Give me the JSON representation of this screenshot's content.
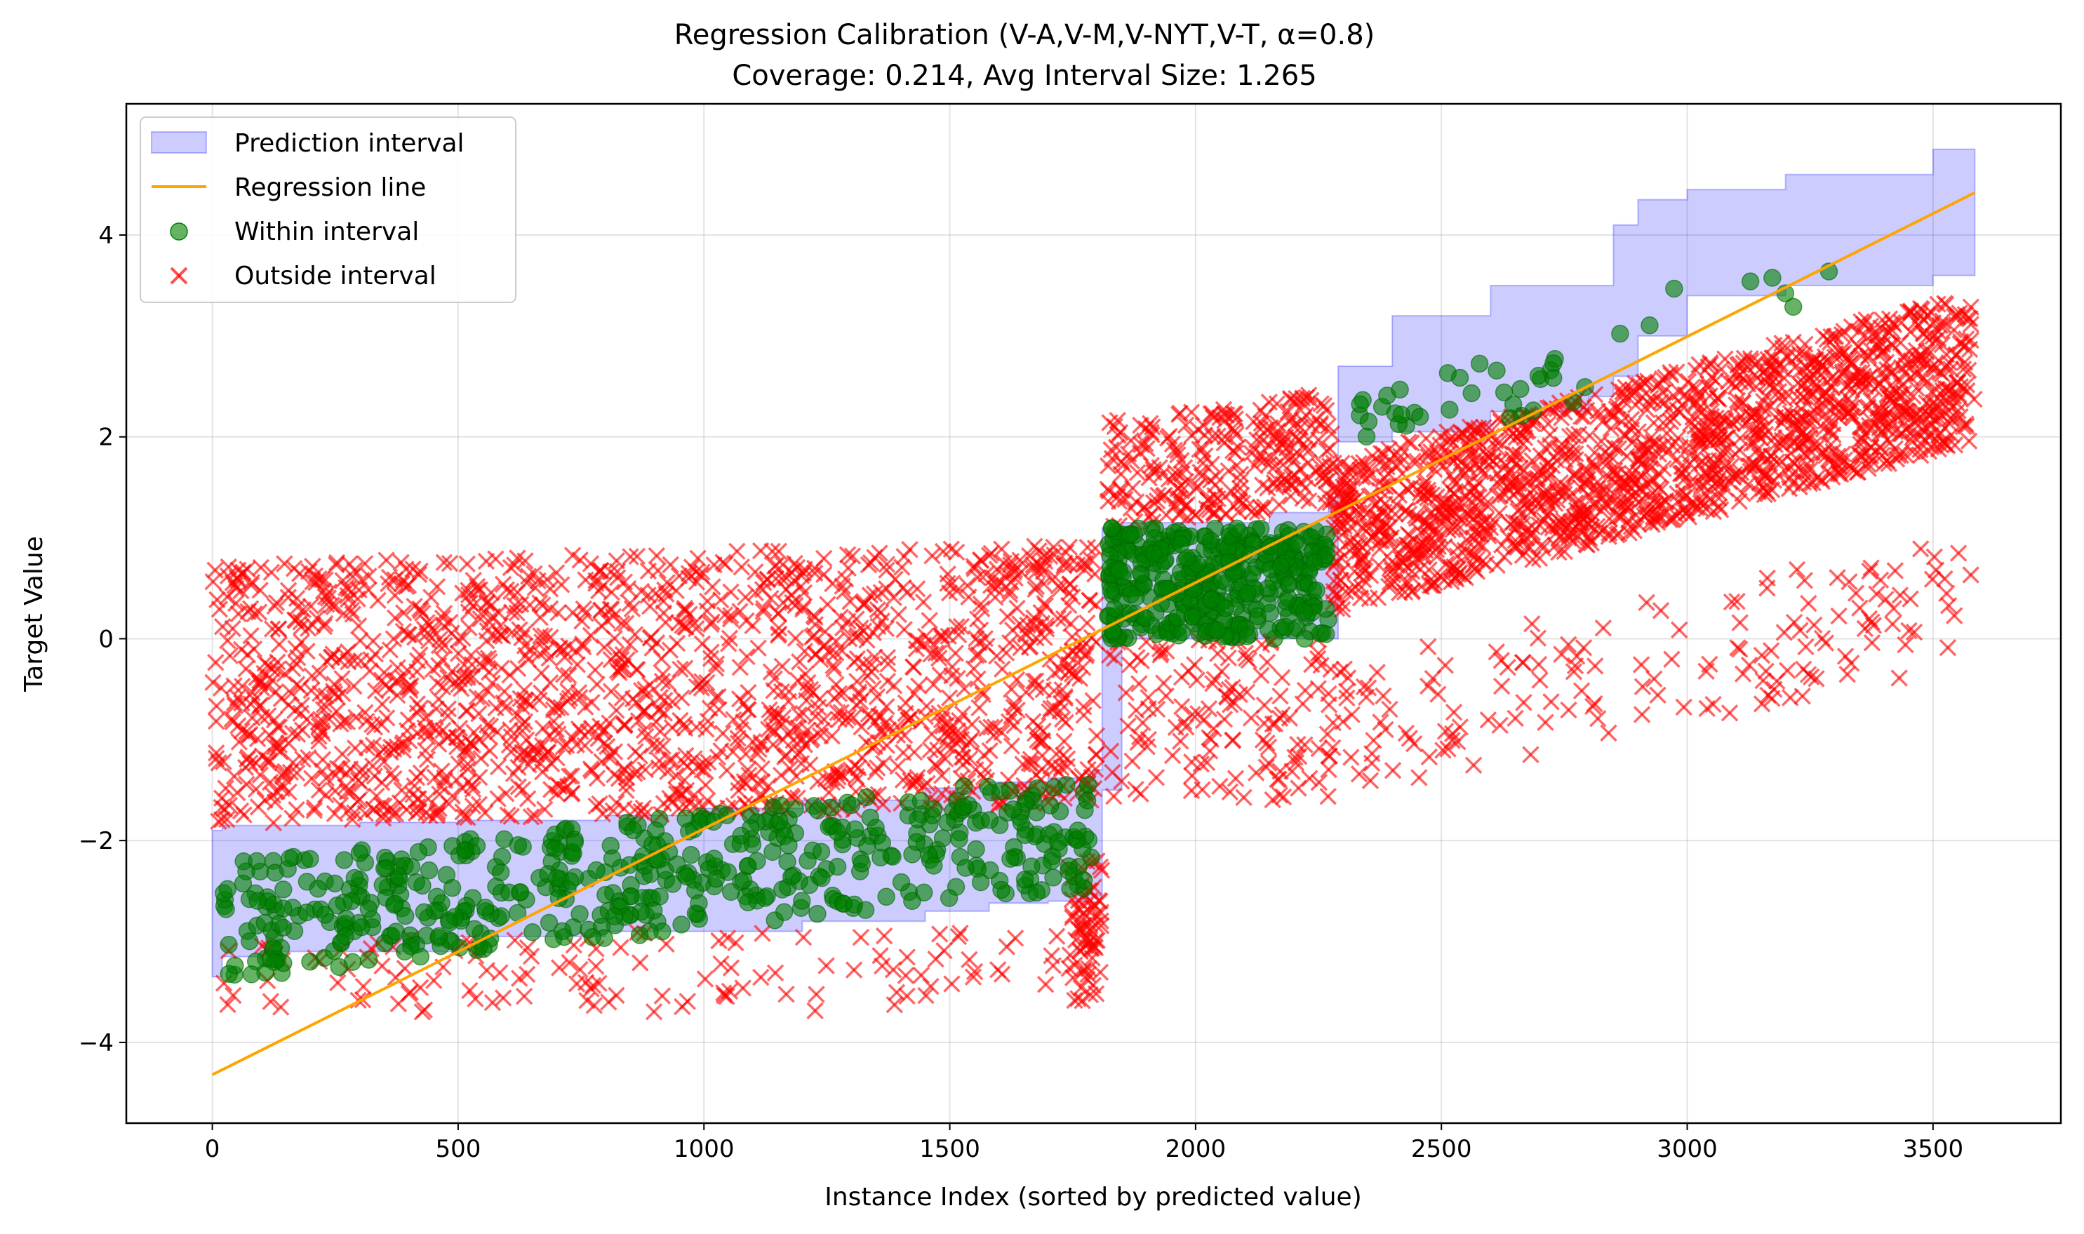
{
  "chart_data": {
    "type": "scatter",
    "title": "Regression Calibration (V-A,V-M,V-NYT,V-T, α=0.8)",
    "subtitle": "Coverage: 0.214, Avg Interval Size: 1.265",
    "xlabel": "Instance Index (sorted by predicted value)",
    "ylabel": "Target Value",
    "xlim": [
      -175,
      3760
    ],
    "ylim": [
      -4.8,
      5.3
    ],
    "xticks": [
      0,
      500,
      1000,
      1500,
      2000,
      2500,
      3000,
      3500
    ],
    "yticks": [
      -4,
      -2,
      0,
      2,
      4
    ],
    "xtick_labels": [
      "0",
      "500",
      "1000",
      "1500",
      "2000",
      "2500",
      "3000",
      "3500"
    ],
    "ytick_labels": [
      "−4",
      "−2",
      "0",
      "2",
      "4"
    ],
    "grid": true,
    "legend_position": "top-left",
    "colors": {
      "interval_fill": "#0000ff",
      "regression": "#ffa500",
      "within": "#008000",
      "outside": "#ff0000"
    },
    "series": [
      {
        "name": "Prediction interval",
        "kind": "band",
        "x": [
          0,
          20,
          100,
          300,
          500,
          800,
          1000,
          1200,
          1450,
          1580,
          1700,
          1790,
          1810,
          1850,
          2000,
          2150,
          2270,
          2290,
          2400,
          2600,
          2800,
          2850,
          2900,
          3000,
          3200,
          3500,
          3585
        ],
        "lower": [
          -3.35,
          -3.15,
          -3.1,
          -3.1,
          -2.95,
          -2.9,
          -2.9,
          -2.8,
          -2.7,
          -2.62,
          -2.6,
          -2.55,
          -1.5,
          0.0,
          0.0,
          0.0,
          0.0,
          1.95,
          2.05,
          2.25,
          2.4,
          2.6,
          3.0,
          3.4,
          3.5,
          3.6,
          3.6
        ],
        "upper": [
          -1.9,
          -1.85,
          -1.85,
          -1.82,
          -1.8,
          -1.75,
          -1.68,
          -1.6,
          -1.48,
          -1.42,
          -1.38,
          -1.3,
          1.1,
          1.15,
          1.15,
          1.25,
          1.4,
          2.7,
          3.2,
          3.5,
          3.5,
          4.1,
          4.35,
          4.45,
          4.6,
          4.85,
          4.85
        ]
      },
      {
        "name": "Regression line",
        "kind": "line",
        "x": [
          0,
          3585
        ],
        "y": [
          -4.32,
          4.42
        ]
      },
      {
        "name": "Within interval",
        "kind": "scatter",
        "marker": "circle",
        "segments": [
          {
            "x_start": 20,
            "x_end": 1790,
            "base_start": -2.8,
            "base_end": -1.9,
            "spread": 1.15,
            "count": 520
          },
          {
            "x_start": 1820,
            "x_end": 2270,
            "base_start": 0.55,
            "base_end": 0.55,
            "spread": 1.1,
            "count": 380
          },
          {
            "x_start": 2280,
            "x_end": 2800,
            "base_start": 2.2,
            "base_end": 2.6,
            "spread": 0.6,
            "count": 34
          },
          {
            "x_start": 2850,
            "x_end": 3320,
            "base_start": 3.2,
            "base_end": 3.55,
            "spread": 0.4,
            "count": 8
          }
        ]
      },
      {
        "name": "Outside interval",
        "kind": "scatter",
        "marker": "x",
        "segments": [
          {
            "x_start": 0,
            "x_end": 1800,
            "base_start": -0.55,
            "base_end": -0.35,
            "spread": 2.6,
            "count": 1550
          },
          {
            "x_start": 0,
            "x_end": 1800,
            "base_start": -3.3,
            "base_end": -3.3,
            "spread": 0.8,
            "count": 130
          },
          {
            "x_start": 1740,
            "x_end": 1810,
            "base_start": -2.9,
            "base_end": -2.9,
            "spread": 1.4,
            "count": 70
          },
          {
            "x_start": 1820,
            "x_end": 2280,
            "base_start": 1.6,
            "base_end": 1.9,
            "spread": 1.1,
            "count": 260
          },
          {
            "x_start": 1820,
            "x_end": 2280,
            "base_start": -0.8,
            "base_end": -0.8,
            "spread": 1.6,
            "count": 140
          },
          {
            "x_start": 2280,
            "x_end": 3585,
            "base_start": 1.0,
            "base_end": 2.7,
            "spread": 1.5,
            "count": 1500
          },
          {
            "x_start": 2280,
            "x_end": 3585,
            "base_start": -0.9,
            "base_end": 0.4,
            "spread": 1.3,
            "count": 160
          }
        ]
      }
    ]
  }
}
